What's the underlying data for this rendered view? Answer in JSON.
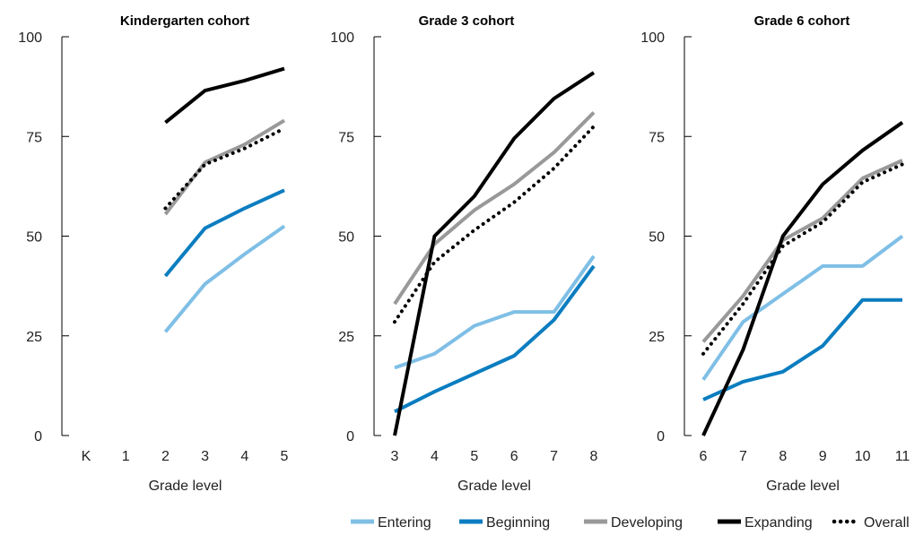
{
  "colors": {
    "Entering": "#7fbfe6",
    "Beginning": "#0b7dc0",
    "Developing": "#999999",
    "Expanding": "#000000",
    "Overall": "#000000"
  },
  "legend": [
    {
      "name": "Entering",
      "style": "solid"
    },
    {
      "name": "Beginning",
      "style": "solid"
    },
    {
      "name": "Developing",
      "style": "solid"
    },
    {
      "name": "Expanding",
      "style": "solid"
    },
    {
      "name": "Overall",
      "style": "dotted"
    }
  ],
  "chart_data": [
    {
      "type": "line",
      "title": "Kindergarten cohort",
      "xlabel": "Grade level",
      "ylabel": "",
      "ylim": [
        0,
        100
      ],
      "yticks": [
        0,
        25,
        50,
        75,
        100
      ],
      "categories": [
        "K",
        "1",
        "2",
        "3",
        "4",
        "5"
      ],
      "series": [
        {
          "name": "Entering",
          "values": [
            null,
            null,
            26,
            38,
            45.5,
            52.5
          ]
        },
        {
          "name": "Beginning",
          "values": [
            null,
            null,
            40,
            52,
            57,
            61.5
          ]
        },
        {
          "name": "Developing",
          "values": [
            null,
            null,
            55.5,
            68.5,
            73,
            79
          ]
        },
        {
          "name": "Expanding",
          "values": [
            null,
            null,
            78.5,
            86.5,
            89,
            92
          ]
        },
        {
          "name": "Overall",
          "values": [
            null,
            null,
            57,
            68,
            72,
            77
          ]
        }
      ]
    },
    {
      "type": "line",
      "title": "Grade 3 cohort",
      "xlabel": "Grade level",
      "ylabel": "",
      "ylim": [
        0,
        100
      ],
      "yticks": [
        0,
        25,
        50,
        75,
        100
      ],
      "categories": [
        "3",
        "4",
        "5",
        "6",
        "7",
        "8"
      ],
      "series": [
        {
          "name": "Entering",
          "values": [
            17,
            20.5,
            27.5,
            31,
            31,
            45
          ]
        },
        {
          "name": "Beginning",
          "values": [
            6,
            11,
            15.5,
            20,
            29,
            42.5
          ]
        },
        {
          "name": "Developing",
          "values": [
            33,
            48,
            56.5,
            63,
            71,
            81
          ]
        },
        {
          "name": "Expanding",
          "values": [
            0,
            50,
            60,
            74.5,
            84.5,
            91
          ]
        },
        {
          "name": "Overall",
          "values": [
            28.5,
            43.5,
            51.5,
            58.5,
            67,
            77.5
          ]
        }
      ]
    },
    {
      "type": "line",
      "title": "Grade 6 cohort",
      "xlabel": "Grade level",
      "ylabel": "",
      "ylim": [
        0,
        100
      ],
      "yticks": [
        0,
        25,
        50,
        75,
        100
      ],
      "categories": [
        "6",
        "7",
        "8",
        "9",
        "10",
        "11"
      ],
      "series": [
        {
          "name": "Entering",
          "values": [
            14,
            28.5,
            35.5,
            42.5,
            42.5,
            50
          ]
        },
        {
          "name": "Beginning",
          "values": [
            9,
            13.5,
            16,
            22.5,
            34,
            34
          ]
        },
        {
          "name": "Developing",
          "values": [
            23.5,
            35,
            49,
            54.5,
            64.5,
            69
          ]
        },
        {
          "name": "Expanding",
          "values": [
            0,
            21.5,
            50,
            63,
            71.5,
            78.5
          ]
        },
        {
          "name": "Overall",
          "values": [
            20.5,
            33,
            47.5,
            53.5,
            63.5,
            68
          ]
        }
      ]
    }
  ]
}
